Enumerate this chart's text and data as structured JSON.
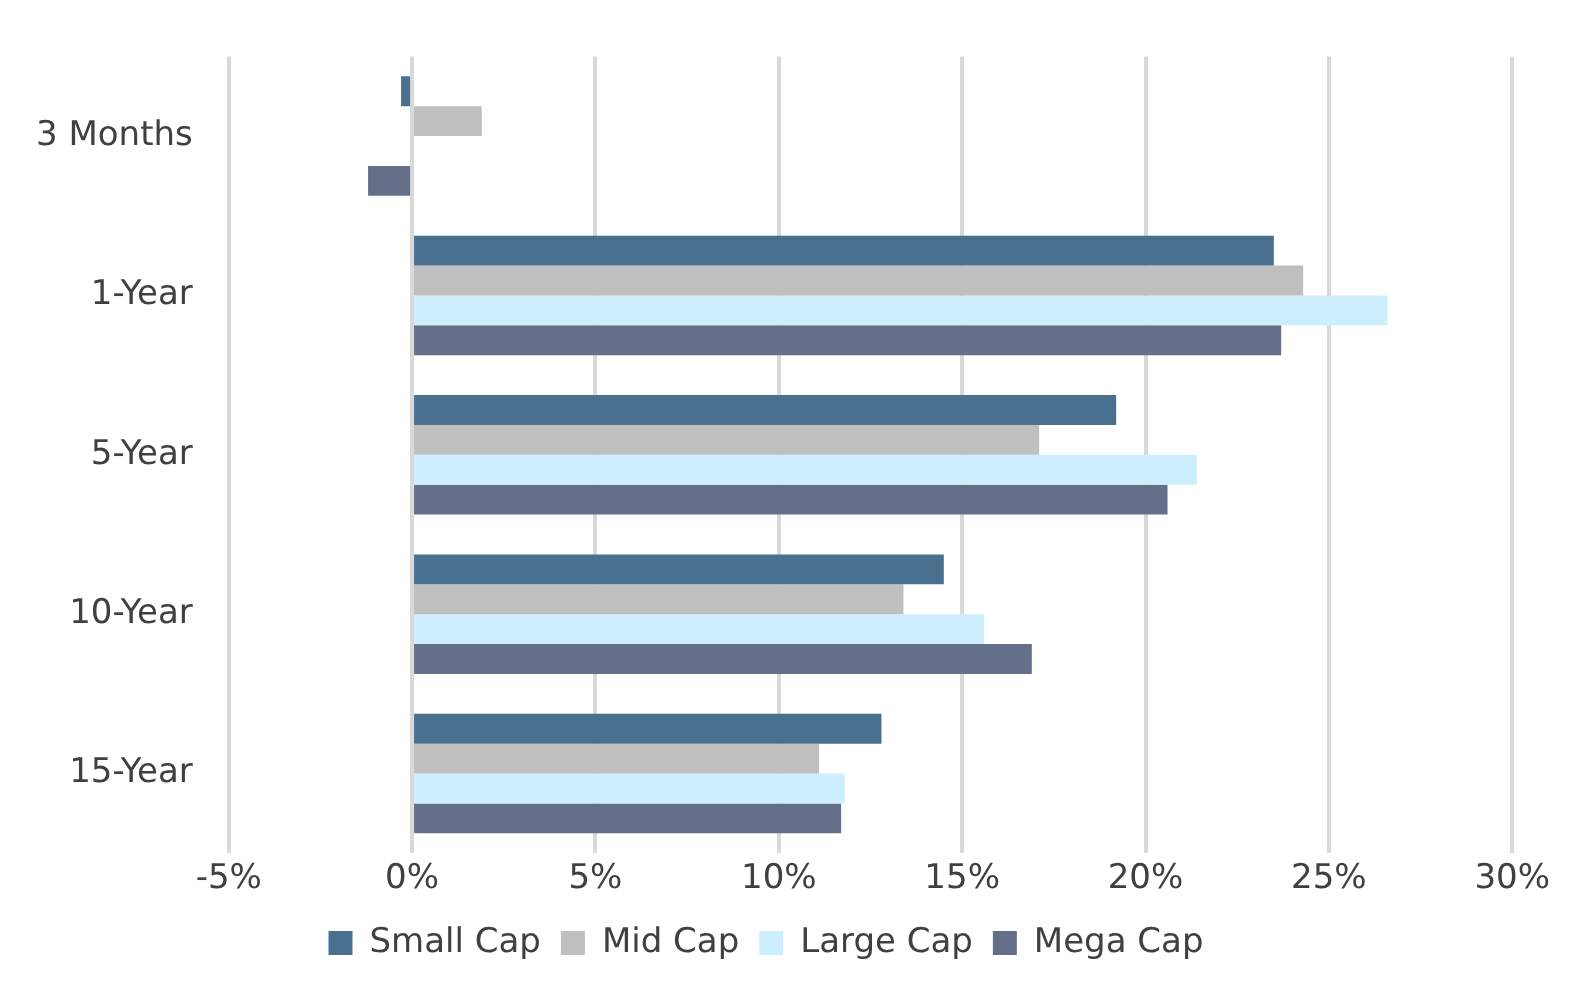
{
  "chart_data": {
    "type": "bar",
    "orientation": "horizontal",
    "categories": [
      "3 Months",
      "1-Year",
      "5-Year",
      "10-Year",
      "15-Year"
    ],
    "series": [
      {
        "name": "Small Cap",
        "color": "#4a7090",
        "values": [
          -0.3,
          23.5,
          19.2,
          14.5,
          12.8
        ]
      },
      {
        "name": "Mid Cap",
        "color": "#bfbfbf",
        "values": [
          1.9,
          24.3,
          17.1,
          13.4,
          11.1
        ]
      },
      {
        "name": "Large Cap",
        "color": "#cdeefd",
        "values": [
          0,
          26.6,
          21.4,
          15.6,
          11.8
        ]
      },
      {
        "name": "Mega Cap",
        "color": "#647089",
        "values": [
          -1.2,
          23.7,
          20.6,
          16.9,
          11.7
        ]
      }
    ],
    "xlim": [
      -5,
      30
    ],
    "xticks": [
      {
        "value": -5,
        "label": "-5%"
      },
      {
        "value": 0,
        "label": "0%"
      },
      {
        "value": 5,
        "label": "5%"
      },
      {
        "value": 10,
        "label": "10%"
      },
      {
        "value": 15,
        "label": "15%"
      },
      {
        "value": 20,
        "label": "20%"
      },
      {
        "value": 25,
        "label": "25%"
      },
      {
        "value": 30,
        "label": "30%"
      }
    ],
    "grid": "x",
    "legend": "bottom"
  }
}
